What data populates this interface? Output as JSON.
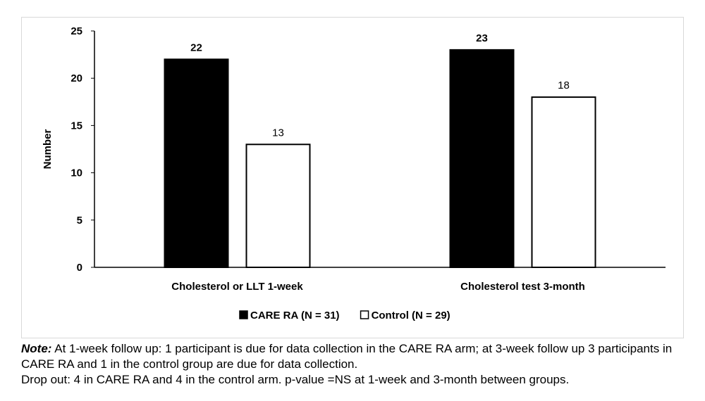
{
  "chart_data": {
    "type": "bar",
    "title": "",
    "xlabel": "",
    "ylabel": "Number",
    "ylim": [
      0,
      25
    ],
    "yticks": [
      "0",
      "5",
      "10",
      "15",
      "20",
      "25"
    ],
    "grid": false,
    "legend_position": "bottom",
    "categories": [
      "Cholesterol or LLT 1-week",
      "Cholesterol test 3-month"
    ],
    "series": [
      {
        "name": "CARE RA (N = 31)",
        "values": [
          22,
          23
        ],
        "labels": [
          "22",
          "23"
        ],
        "color": "#000000",
        "fill": "#000000"
      },
      {
        "name": "Control (N = 29)",
        "values": [
          13,
          18
        ],
        "labels": [
          "13",
          "18"
        ],
        "color": "#000000",
        "fill": "#ffffff"
      }
    ]
  },
  "note": {
    "lead": "Note:",
    "line1": " At 1-week follow up: 1 participant is due for data collection in the CARE RA arm; at 3-week follow up 3 participants in CARE RA and 1 in the control group are due for data collection.",
    "line2": "Drop out: 4 in CARE RA and 4 in the control arm. p-value =NS at 1-week and 3-month between groups."
  }
}
